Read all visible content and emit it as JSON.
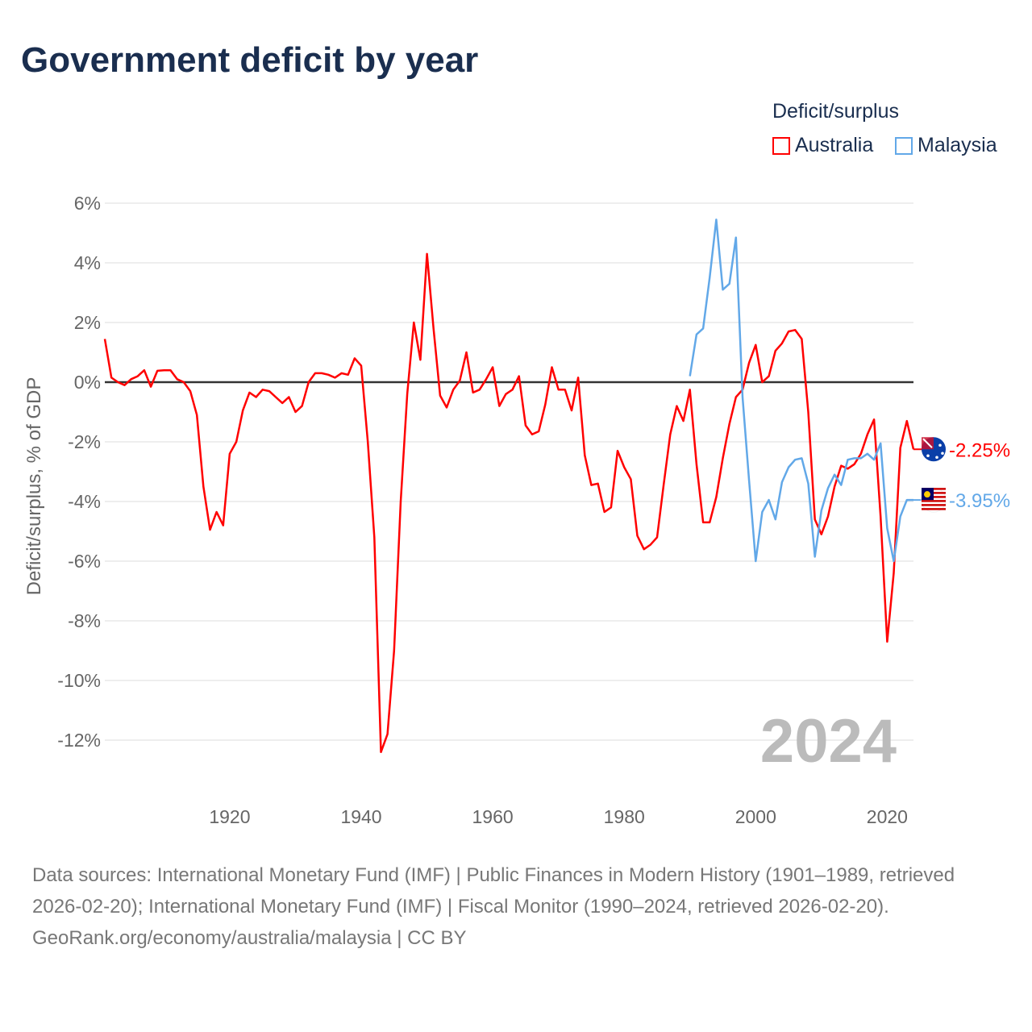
{
  "title": "Government deficit by year",
  "legend": {
    "title": "Deficit/surplus",
    "items": [
      {
        "label": "Australia",
        "color": "#ff0000"
      },
      {
        "label": "Malaysia",
        "color": "#62a8e8"
      }
    ]
  },
  "chart_data": {
    "type": "line",
    "title": "Government deficit by year",
    "ylabel": "Deficit/surplus, % of GDP",
    "xlabel": "",
    "xlim": [
      1901,
      2024
    ],
    "ylim": [
      -12,
      6
    ],
    "yticks": [
      6,
      4,
      2,
      0,
      -2,
      -4,
      -6,
      -8,
      -10,
      -12
    ],
    "ytick_labels": [
      "6%",
      "4%",
      "2%",
      "0%",
      "-2%",
      "-4%",
      "-6%",
      "-8%",
      "-10%",
      "-12%"
    ],
    "xticks": [
      1920,
      1940,
      1960,
      1980,
      2000,
      2020
    ],
    "xtick_labels": [
      "1920",
      "1940",
      "1960",
      "1980",
      "2000",
      "2020"
    ],
    "grid": true,
    "legend_position": "top-right",
    "current_year_label": "2024",
    "series": [
      {
        "name": "Australia",
        "color": "#ff0000",
        "start_year": 1901,
        "end_label": "-2.25%",
        "values": [
          1.45,
          0.15,
          0.0,
          -0.1,
          0.1,
          0.2,
          0.4,
          -0.15,
          0.38,
          0.4,
          0.4,
          0.1,
          0.0,
          -0.3,
          -1.1,
          -3.5,
          -4.95,
          -4.35,
          -4.8,
          -2.4,
          -2.0,
          -0.95,
          -0.35,
          -0.5,
          -0.25,
          -0.3,
          -0.5,
          -0.7,
          -0.5,
          -1.0,
          -0.8,
          0.0,
          0.3,
          0.3,
          0.25,
          0.15,
          0.3,
          0.25,
          0.8,
          0.55,
          -2.0,
          -5.2,
          -12.4,
          -11.8,
          -9.0,
          -4.0,
          -0.4,
          2.0,
          0.75,
          4.3,
          1.8,
          -0.45,
          -0.85,
          -0.25,
          0.05,
          1.0,
          -0.35,
          -0.25,
          0.1,
          0.5,
          -0.8,
          -0.4,
          -0.25,
          0.2,
          -1.45,
          -1.75,
          -1.65,
          -0.75,
          0.5,
          -0.25,
          -0.25,
          -0.95,
          0.15,
          -2.45,
          -3.45,
          -3.4,
          -4.35,
          -4.2,
          -2.3,
          -2.85,
          -3.25,
          -5.15,
          -5.6,
          -5.45,
          -5.2,
          -3.45,
          -1.75,
          -0.8,
          -1.3,
          -0.25,
          -2.75,
          -4.7,
          -4.7,
          -3.85,
          -2.55,
          -1.4,
          -0.5,
          -0.25,
          0.65,
          1.25,
          0.0,
          0.2,
          1.05,
          1.3,
          1.7,
          1.75,
          1.45,
          -1.0,
          -4.6,
          -5.1,
          -4.5,
          -3.5,
          -2.8,
          -2.9,
          -2.75,
          -2.4,
          -1.75,
          -1.25,
          -4.5,
          -8.7,
          -6.4,
          -2.2,
          -1.3,
          -2.25
        ]
      },
      {
        "name": "Malaysia",
        "color": "#62a8e8",
        "start_year": 1990,
        "end_label": "-3.95%",
        "values": [
          0.2,
          1.6,
          1.8,
          3.5,
          5.45,
          3.1,
          3.3,
          4.85,
          -0.5,
          -3.3,
          -6.0,
          -4.35,
          -3.95,
          -4.6,
          -3.35,
          -2.85,
          -2.6,
          -2.55,
          -3.4,
          -5.85,
          -4.3,
          -3.55,
          -3.1,
          -3.45,
          -2.6,
          -2.55,
          -2.55,
          -2.4,
          -2.6,
          -2.05,
          -4.9,
          -6.0,
          -4.5,
          -3.95,
          -3.95
        ]
      }
    ]
  },
  "footer": {
    "sources": "Data sources: International Monetary Fund (IMF) | Public Finances in Modern History (1901–1989, retrieved 2026-02-20); International Monetary Fund (IMF) | Fiscal Monitor (1990–2024, retrieved 2026-02-20).",
    "credit": "GeoRank.org/economy/australia/malaysia | CC BY"
  }
}
